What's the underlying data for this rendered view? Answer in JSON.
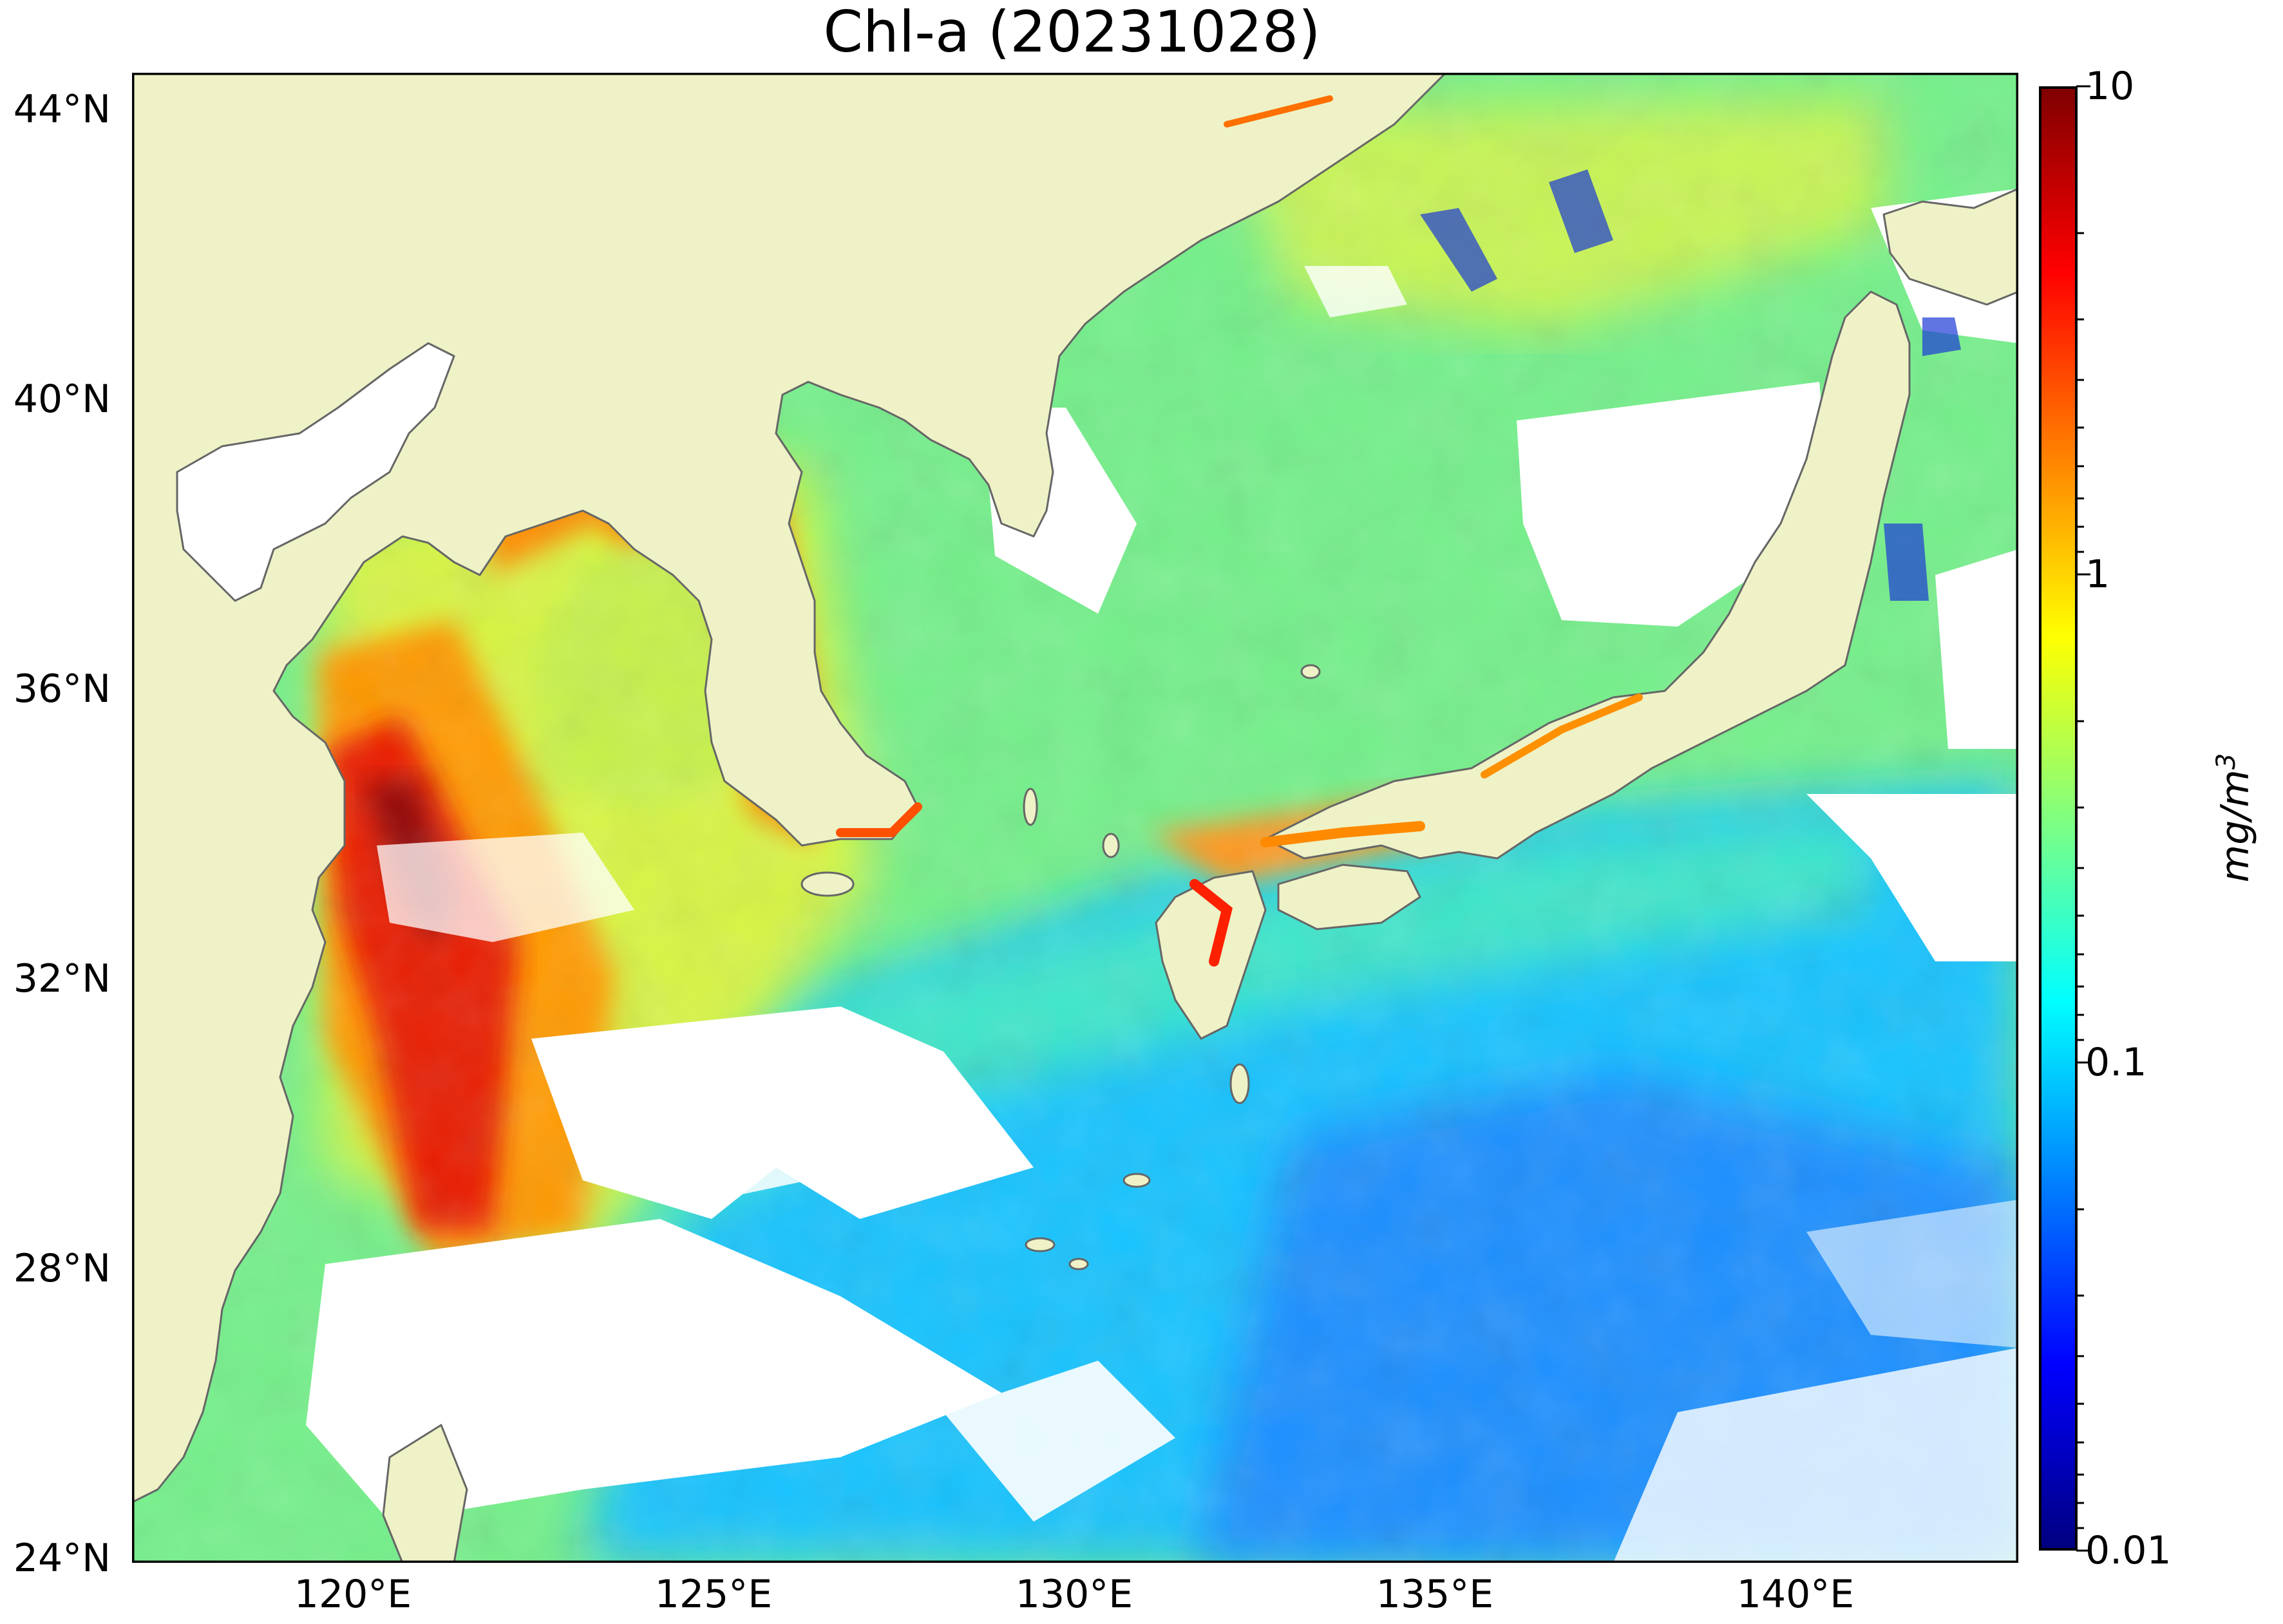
{
  "title": "Chl-a (20231028)",
  "map": {
    "region": "East China Sea, Yellow Sea, Sea of Japan, Northwest Pacific",
    "lat_labels": [
      "44°N",
      "40°N",
      "36°N",
      "32°N",
      "28°N",
      "24°N"
    ],
    "lon_labels": [
      "120°E",
      "125°E",
      "130°E",
      "135°E",
      "140°E"
    ],
    "land_color": "#eef2c6",
    "coastline_color": "#666666",
    "no_data_color": "#ffffff"
  },
  "colorbar": {
    "ticks": [
      "10",
      "1",
      "0.1",
      "0.01"
    ],
    "unit_main": "mg/m",
    "unit_exp": "3",
    "scale": "log",
    "colormap": "jet",
    "colors": [
      "#000080",
      "#0000ff",
      "#0080ff",
      "#00ffff",
      "#80ff80",
      "#ffff00",
      "#ff8000",
      "#ff0000",
      "#800000"
    ]
  }
}
